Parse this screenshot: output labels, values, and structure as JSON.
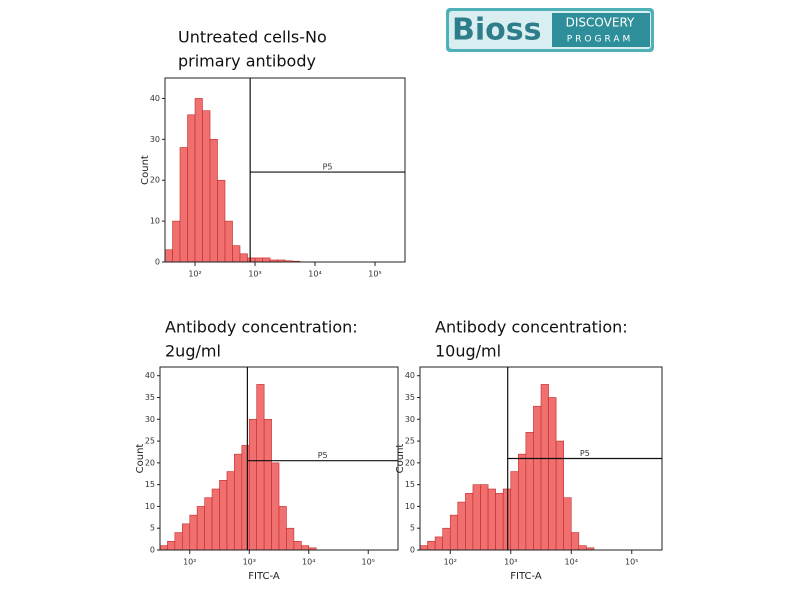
{
  "logo": {
    "name": "Bioss",
    "tagline": [
      "DISCOVERY",
      "PROGRAM"
    ]
  },
  "chart_data": [
    {
      "type": "histogram",
      "title": [
        "Untreated cells-No",
        "primary antibody"
      ],
      "y_label": "Count",
      "log_x": true,
      "color": "#f07070",
      "edge_color": "#c42a2a",
      "bins": [
        31.6,
        42.2,
        56.2,
        75,
        100,
        133,
        178,
        237,
        316,
        422,
        562,
        750,
        1000,
        1334,
        1778,
        2371,
        3162,
        4217,
        5623,
        7499,
        10000,
        13335,
        17783,
        23714,
        31623,
        42170,
        56234,
        74989,
        100000,
        133352,
        177828,
        237137,
        316228
      ],
      "values": [
        3,
        10,
        28,
        36,
        40,
        37,
        30,
        20,
        10,
        4,
        2,
        1,
        1,
        1,
        0.5,
        0.5,
        0.3,
        0.2,
        0,
        0,
        0,
        0,
        0,
        0,
        0,
        0,
        0,
        0,
        0,
        0,
        0,
        0
      ],
      "xlim": [
        31.6,
        316228
      ],
      "ylim": [
        0,
        45
      ],
      "yticks": [
        0,
        10,
        20,
        30,
        40
      ],
      "xticks": [
        {
          "value": 100,
          "label": "10²"
        },
        {
          "value": 1000,
          "label": "10³"
        },
        {
          "value": 10000,
          "label": "10⁴"
        },
        {
          "value": 100000,
          "label": "10⁵"
        }
      ],
      "gate": {
        "label": "P5",
        "x": 830,
        "y": 22
      }
    },
    {
      "type": "histogram",
      "title": [
        "Antibody concentration:",
        "2ug/ml"
      ],
      "y_label": "Count",
      "x_label": "FITC-A",
      "log_x": true,
      "color": "#f07070",
      "edge_color": "#c42a2a",
      "bins": [
        31.6,
        42.2,
        56.2,
        75,
        100,
        133,
        178,
        237,
        316,
        422,
        562,
        750,
        1000,
        1334,
        1778,
        2371,
        3162,
        4217,
        5623,
        7499,
        10000,
        13335,
        17783,
        23714,
        31623,
        42170,
        56234,
        74989,
        100000,
        133352,
        177828,
        237137,
        316228
      ],
      "values": [
        1,
        2,
        4,
        6,
        8,
        10,
        12,
        14,
        16,
        18,
        22,
        24,
        30,
        38,
        30,
        20,
        10,
        5,
        2,
        1,
        0.5,
        0,
        0,
        0,
        0,
        0,
        0,
        0,
        0,
        0,
        0,
        0
      ],
      "xlim": [
        31.6,
        316228
      ],
      "ylim": [
        0,
        42
      ],
      "yticks": [
        0,
        5,
        10,
        15,
        20,
        25,
        30,
        35,
        40
      ],
      "xticks": [
        {
          "value": 100,
          "label": "10²"
        },
        {
          "value": 1000,
          "label": "10³"
        },
        {
          "value": 10000,
          "label": "10⁴"
        },
        {
          "value": 100000,
          "label": "10⁵"
        }
      ],
      "gate": {
        "label": "P5",
        "x": 930,
        "y": 20.5
      }
    },
    {
      "type": "histogram",
      "title": [
        "Antibody concentration:",
        "10ug/ml"
      ],
      "y_label": "Count",
      "x_label": "FITC-A",
      "log_x": true,
      "color": "#f07070",
      "edge_color": "#c42a2a",
      "bins": [
        31.6,
        42.2,
        56.2,
        75,
        100,
        133,
        178,
        237,
        316,
        422,
        562,
        750,
        1000,
        1334,
        1778,
        2371,
        3162,
        4217,
        5623,
        7499,
        10000,
        13335,
        17783,
        23714,
        31623,
        42170,
        56234,
        74989,
        100000,
        133352,
        177828,
        237137,
        316228
      ],
      "values": [
        1,
        2,
        3,
        5,
        8,
        11,
        13,
        15,
        15,
        14,
        13,
        14,
        18,
        22,
        27,
        33,
        38,
        35,
        25,
        12,
        4,
        1,
        0.5,
        0,
        0,
        0,
        0,
        0,
        0,
        0,
        0,
        0
      ],
      "xlim": [
        31.6,
        316228
      ],
      "ylim": [
        0,
        42
      ],
      "yticks": [
        0,
        5,
        10,
        15,
        20,
        25,
        30,
        35,
        40
      ],
      "xticks": [
        {
          "value": 100,
          "label": "10²"
        },
        {
          "value": 1000,
          "label": "10³"
        },
        {
          "value": 10000,
          "label": "10⁴"
        },
        {
          "value": 100000,
          "label": "10⁵"
        }
      ],
      "gate": {
        "label": "P5",
        "x": 890,
        "y": 21
      }
    }
  ]
}
